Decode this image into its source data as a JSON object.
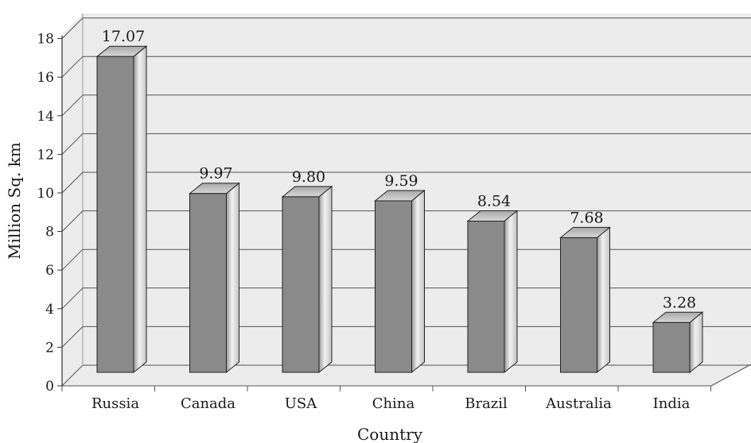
{
  "chart_data": {
    "type": "bar",
    "title": "",
    "xlabel": "Country",
    "ylabel": "Million Sq. km",
    "categories": [
      "Russia",
      "Canada",
      "USA",
      "China",
      "Brazil",
      "Australia",
      "India"
    ],
    "values": [
      17.07,
      9.97,
      9.8,
      9.59,
      8.54,
      7.68,
      3.28
    ],
    "value_labels": [
      "17.07",
      "9.97",
      "9.80",
      "9.59",
      "8.54",
      "7.68",
      "3.28"
    ],
    "y_ticks": [
      "0",
      "2",
      "4",
      "6",
      "8",
      "10",
      "12",
      "14",
      "16",
      "18"
    ],
    "ylim": [
      0,
      18
    ],
    "grid": true,
    "legend": "none",
    "bar_color": "#8a8a8a",
    "background_color": "#ececec"
  }
}
